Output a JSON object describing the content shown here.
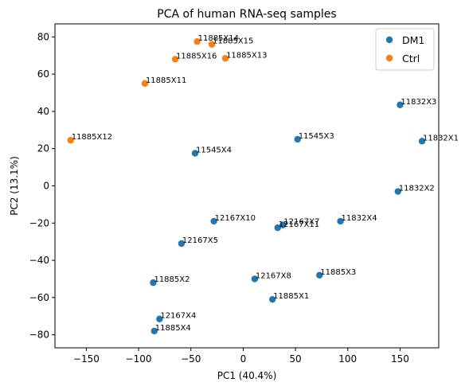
{
  "chart_data": {
    "type": "scatter",
    "title": "PCA of human RNA-seq samples",
    "xlabel": "PC1 (40.4%)",
    "ylabel": "PC2 (13.1%)",
    "xlim": [
      -180,
      187
    ],
    "ylim": [
      -87,
      87
    ],
    "xticks": [
      -150,
      -100,
      -50,
      0,
      50,
      100,
      150
    ],
    "yticks": [
      -80,
      -60,
      -40,
      -20,
      0,
      20,
      40,
      60,
      80
    ],
    "xtick_labels": [
      "−150",
      "−100",
      "−50",
      "0",
      "50",
      "100",
      "150"
    ],
    "ytick_labels": [
      "−80",
      "−60",
      "−40",
      "−20",
      "0",
      "20",
      "40",
      "60",
      "80"
    ],
    "grid": false,
    "legend_position": "top-right",
    "series": [
      {
        "name": "DM1",
        "color": "#1f77b4",
        "points": [
          {
            "label": "11832X3",
            "x": 150,
            "y": 43.5
          },
          {
            "label": "11832X1",
            "x": 171,
            "y": 24
          },
          {
            "label": "11545X3",
            "x": 52,
            "y": 25
          },
          {
            "label": "11545X4",
            "x": -46,
            "y": 17.5
          },
          {
            "label": "11832X2",
            "x": 148,
            "y": -3
          },
          {
            "label": "12167X7",
            "x": 38,
            "y": -21
          },
          {
            "label": "12167X11",
            "x": 33,
            "y": -22.5
          },
          {
            "label": "11832X4",
            "x": 93,
            "y": -19
          },
          {
            "label": "12167X10",
            "x": -28,
            "y": -19
          },
          {
            "label": "12167X5",
            "x": -59,
            "y": -31
          },
          {
            "label": "11885X2",
            "x": -86,
            "y": -52
          },
          {
            "label": "12167X8",
            "x": 11,
            "y": -50
          },
          {
            "label": "11885X3",
            "x": 73,
            "y": -48
          },
          {
            "label": "11885X1",
            "x": 28,
            "y": -61
          },
          {
            "label": "12167X4",
            "x": -80,
            "y": -71.5
          },
          {
            "label": "11885X4",
            "x": -85,
            "y": -78
          }
        ]
      },
      {
        "name": "Ctrl",
        "color": "#ff7f0e",
        "points": [
          {
            "label": "11885X14",
            "x": -44,
            "y": 77.5
          },
          {
            "label": "11885X15",
            "x": -30,
            "y": 76
          },
          {
            "label": "11885X16",
            "x": -65,
            "y": 68
          },
          {
            "label": "11885X13",
            "x": -17,
            "y": 68.5
          },
          {
            "label": "11885X11",
            "x": -94,
            "y": 55
          },
          {
            "label": "11885X12",
            "x": -165,
            "y": 24.5
          }
        ]
      }
    ]
  }
}
